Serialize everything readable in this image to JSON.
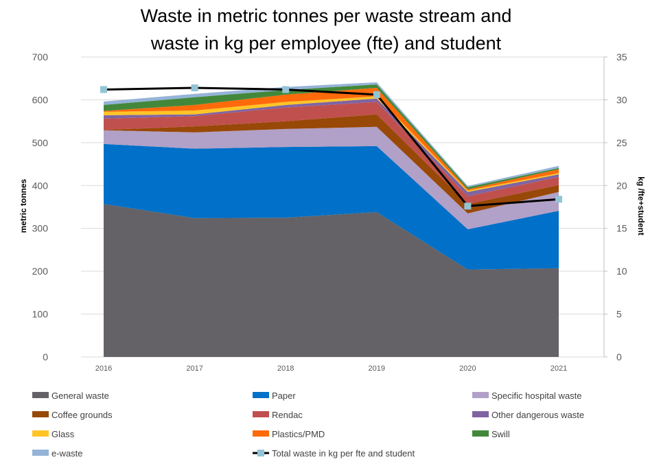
{
  "chart_data": {
    "type": "area",
    "stacked": true,
    "title": "Waste in metric tonnes per waste stream and waste in kg per employee (fte) and student",
    "title_lines": [
      "Waste in metric tonnes per waste stream and",
      "waste in kg per employee (fte) and student"
    ],
    "categories": [
      "2016",
      "2017",
      "2018",
      "2019",
      "2020",
      "2021"
    ],
    "ylabel": "metric tonnes",
    "y2label": "kg /fte+student",
    "ylim": [
      0,
      700
    ],
    "yticks": [
      "0",
      "100",
      "200",
      "300",
      "400",
      "500",
      "600",
      "700"
    ],
    "y2lim": [
      0,
      35
    ],
    "y2ticks": [
      "0",
      "5",
      "10",
      "15",
      "20",
      "25",
      "30",
      "35"
    ],
    "grid": true,
    "legend_position": "bottom",
    "series": [
      {
        "name": "General waste",
        "color": "#646266",
        "values": [
          357,
          324,
          325,
          338,
          204,
          207
        ]
      },
      {
        "name": "Paper",
        "color": "#0070C8",
        "values": [
          140,
          162,
          165,
          154,
          94,
          134
        ]
      },
      {
        "name": "Specific hospital waste",
        "color": "#B1A0C7",
        "values": [
          32,
          38,
          42,
          45,
          37,
          44
        ]
      },
      {
        "name": "Coffee grounds",
        "color": "#984807",
        "values": [
          1,
          14,
          18,
          29,
          22,
          16
        ]
      },
      {
        "name": "Rendac",
        "color": "#C0504D",
        "values": [
          26,
          24,
          32,
          29,
          18,
          19
        ]
      },
      {
        "name": "Other dangerous waste",
        "color": "#8064A2",
        "values": [
          8,
          4,
          6,
          8,
          10,
          6
        ]
      },
      {
        "name": "Glass",
        "color": "#FFC526",
        "values": [
          8,
          9,
          7,
          5,
          3,
          3
        ]
      },
      {
        "name": "Plastics/PMD",
        "color": "#FF6A0B",
        "values": [
          2,
          13,
          17,
          20,
          3,
          9
        ]
      },
      {
        "name": "Swill",
        "color": "#43883A",
        "values": [
          14,
          18,
          11,
          8,
          5,
          3
        ]
      },
      {
        "name": "e-waste",
        "color": "#95B3D7",
        "values": [
          8,
          8,
          7,
          5,
          3,
          5
        ]
      }
    ],
    "line_series": {
      "name": "Total waste in kg per fte and student",
      "axis": "secondary",
      "color": "#000000",
      "marker_color": "#93C4D6",
      "values": [
        31.2,
        31.4,
        31.2,
        30.6,
        17.6,
        18.4
      ]
    }
  }
}
